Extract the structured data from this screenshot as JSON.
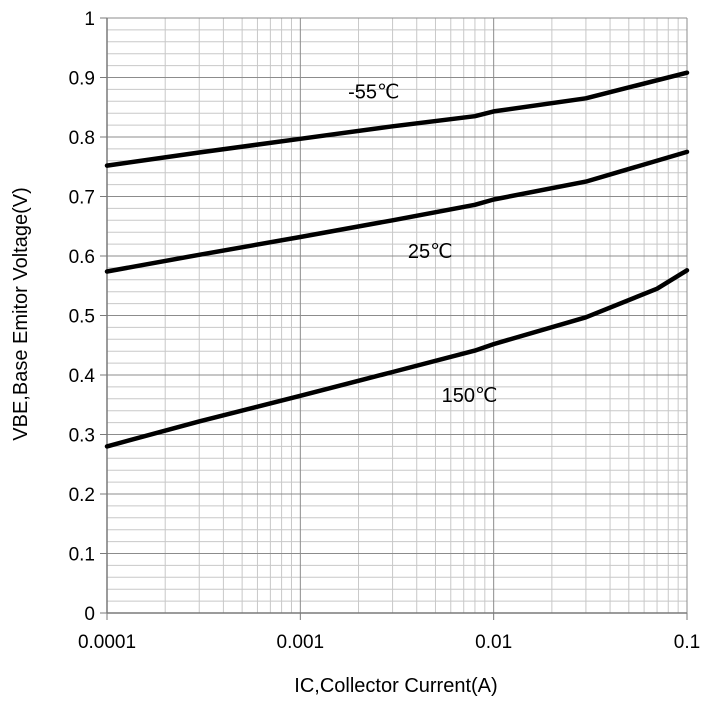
{
  "chart_data": {
    "type": "line",
    "xlabel": "IC,Collector Current(A)",
    "ylabel": "VBE,Base Emitor Voltage(V)",
    "x_scale": "log",
    "xlim": [
      0.0001,
      0.1
    ],
    "ylim": [
      0,
      1
    ],
    "x_ticks": [
      "0.0001",
      "0.001",
      "0.01",
      "0.1"
    ],
    "y_ticks": [
      "0",
      "0.1",
      "0.2",
      "0.3",
      "0.4",
      "0.5",
      "0.6",
      "0.7",
      "0.8",
      "0.9",
      "1"
    ],
    "grid": true,
    "series": [
      {
        "name": "-55℃",
        "x": [
          0.0001,
          0.0003,
          0.001,
          0.003,
          0.008,
          0.01,
          0.03,
          0.1
        ],
        "y": [
          0.752,
          0.774,
          0.797,
          0.818,
          0.835,
          0.843,
          0.865,
          0.908
        ]
      },
      {
        "name": "25℃",
        "x": [
          0.0001,
          0.0003,
          0.001,
          0.003,
          0.008,
          0.01,
          0.03,
          0.1
        ],
        "y": [
          0.574,
          0.602,
          0.632,
          0.66,
          0.686,
          0.695,
          0.725,
          0.775
        ]
      },
      {
        "name": "150℃",
        "x": [
          0.0001,
          0.0003,
          0.001,
          0.003,
          0.008,
          0.01,
          0.03,
          0.07,
          0.1
        ],
        "y": [
          0.28,
          0.322,
          0.365,
          0.405,
          0.441,
          0.452,
          0.497,
          0.545,
          0.576
        ]
      }
    ]
  }
}
